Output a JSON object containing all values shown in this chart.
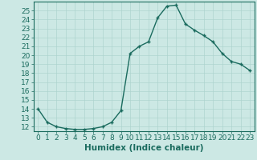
{
  "x": [
    0,
    1,
    2,
    3,
    4,
    5,
    6,
    7,
    8,
    9,
    10,
    11,
    12,
    13,
    14,
    15,
    16,
    17,
    18,
    19,
    20,
    21,
    22,
    23
  ],
  "y": [
    14,
    12.5,
    12,
    11.8,
    11.7,
    11.7,
    11.8,
    12,
    12.5,
    13.8,
    20.2,
    21.0,
    21.5,
    24.2,
    25.5,
    25.6,
    23.5,
    22.8,
    22.2,
    21.5,
    20.2,
    19.3,
    19.0,
    18.3
  ],
  "line_color": "#1a6b5e",
  "marker": "+",
  "bg_color": "#cce8e4",
  "grid_color": "#aed4cf",
  "xlabel": "Humidex (Indice chaleur)",
  "xlim": [
    -0.5,
    23.5
  ],
  "ylim": [
    11.5,
    26.0
  ],
  "yticks": [
    12,
    13,
    14,
    15,
    16,
    17,
    18,
    19,
    20,
    21,
    22,
    23,
    24,
    25
  ],
  "xticks": [
    0,
    1,
    2,
    3,
    4,
    5,
    6,
    7,
    8,
    9,
    10,
    11,
    12,
    13,
    14,
    15,
    16,
    17,
    18,
    19,
    20,
    21,
    22,
    23
  ],
  "tick_color": "#1a6b5e",
  "label_color": "#1a6b5e",
  "font_size": 6.5,
  "xlabel_fontsize": 7.5,
  "marker_size": 3.5,
  "linewidth": 1.0
}
